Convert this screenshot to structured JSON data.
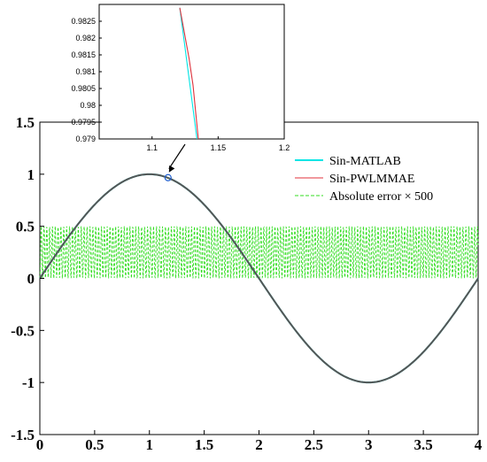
{
  "chart_data": [
    {
      "type": "line",
      "title": "",
      "xlabel": "",
      "ylabel": "",
      "xlim": [
        0,
        4
      ],
      "ylim": [
        -1.5,
        1.5
      ],
      "x_ticks": [
        "0",
        "0.5",
        "1",
        "1.5",
        "2",
        "2.5",
        "3",
        "3.5",
        "4"
      ],
      "y_ticks": [
        "1.5",
        "1",
        "0.5",
        "0",
        "-0.5",
        "-1",
        "-1.5"
      ],
      "grid": false,
      "legend_position": "top-right",
      "series": [
        {
          "name": "Sin-MATLAB",
          "function": "sin(pi*x/2)",
          "color": "#00e5e5"
        },
        {
          "name": "Sin-PWLMMAE",
          "function": "piecewise linear approximation of sin(pi*x/2)",
          "color": "#e0313b"
        },
        {
          "name": "Absolute error × 500",
          "function": "oscillating error scaled by 500, range 0 to 0.5",
          "color": "#33dd22",
          "style": "dashed"
        }
      ],
      "annotation": {
        "marker_x": 1.17,
        "marker_y": 0.967,
        "note": "circled region magnified in inset"
      }
    },
    {
      "type": "line",
      "title": "",
      "xlim": [
        1.06,
        1.2
      ],
      "ylim": [
        0.979,
        0.983
      ],
      "x_ticks": [
        "1.1",
        "1.15",
        "1.2"
      ],
      "y_ticks": [
        "0.9825",
        "0.982",
        "0.9815",
        "0.981",
        "0.9805",
        "0.98",
        "0.9795",
        "0.979"
      ],
      "series": [
        {
          "name": "Sin-MATLAB",
          "color": "#00e5e5",
          "x": [
            1.121,
            1.134
          ],
          "y": [
            0.9829,
            0.9788
          ]
        },
        {
          "name": "Sin-PWLMMAE",
          "color": "#e0313b",
          "x": [
            1.121,
            1.128,
            1.131,
            1.135
          ],
          "y": [
            0.9829,
            0.9814,
            0.9806,
            0.9788
          ]
        }
      ]
    }
  ]
}
